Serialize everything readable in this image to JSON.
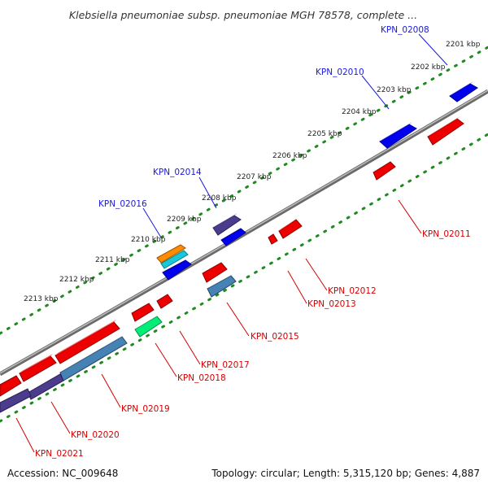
{
  "title": "Klebsiella pneumoniae subsp. pneumoniae MGH 78578, complete ...",
  "footer": {
    "accession": "Accession: NC_009648",
    "summary": "Topology: circular; Length: 5,315,120 bp; Genes: 4,887"
  },
  "colors": {
    "forward_label": "#1a1adc",
    "reverse_label": "#d40000",
    "scale_dots": "#1f8a1f",
    "backbone": "#8c8c8c"
  },
  "scale": {
    "unit": "kbp",
    "ticks": [
      "2201 kbp",
      "2202 kbp",
      "2203 kbp",
      "2204 kbp",
      "2205 kbp",
      "2206 kbp",
      "2207 kbp",
      "2208 kbp",
      "2209 kbp",
      "2210 kbp",
      "2211 kbp",
      "2212 kbp",
      "2213 kbp"
    ]
  },
  "genes_forward_labels": [
    {
      "id": "KPN_02008",
      "color": "#0000ee"
    },
    {
      "id": "KPN_02010",
      "color": "#0000ee"
    },
    {
      "id": "KPN_02014",
      "color": "#4b3c8c"
    },
    {
      "id": "KPN_02016",
      "color": "#ff8c00"
    }
  ],
  "genes_reverse_labels": [
    {
      "id": "KPN_02011"
    },
    {
      "id": "KPN_02012"
    },
    {
      "id": "KPN_02013"
    },
    {
      "id": "KPN_02015"
    },
    {
      "id": "KPN_02017"
    },
    {
      "id": "KPN_02018"
    },
    {
      "id": "KPN_02019"
    },
    {
      "id": "KPN_02020"
    },
    {
      "id": "KPN_02021"
    }
  ]
}
